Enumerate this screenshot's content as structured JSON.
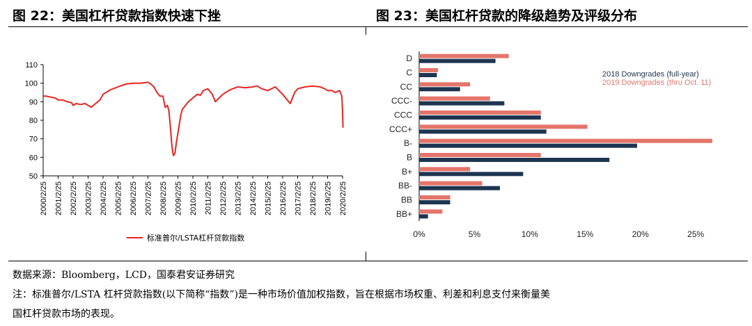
{
  "left_title": "图 22：美国杠杆贷款指数快速下挫",
  "right_title": "图 23：美国杠杆贷款的降级趋势及评级分布",
  "source": "数据来源：Bloomberg，LCD，国泰君安证券研究",
  "note_line1": "注：标准普尔/LSTA 杠杆贷款指数(以下简称“指数”)是一种市场价值加权指数，旨在根据市场权重、利差和利息支付来衡量美",
  "note_line2": "国杠杆贷款市场的表现。",
  "chart_data": [
    {
      "type": "line",
      "title": "",
      "xlabel": "",
      "ylabel": "",
      "ylim": [
        50,
        110
      ],
      "yticks": [
        "110",
        "100",
        "90",
        "80",
        "70",
        "60",
        "50"
      ],
      "xticks": [
        "2000/2/25",
        "2001/2/25",
        "2002/2/25",
        "2003/2/25",
        "2004/2/25",
        "2005/2/25",
        "2006/2/25",
        "2007/2/25",
        "2008/2/25",
        "2009/2/25",
        "2010/2/25",
        "2011/2/25",
        "2012/2/25",
        "2013/2/25",
        "2014/2/25",
        "2015/2/25",
        "2016/2/25",
        "2017/2/25",
        "2018/2/25",
        "2019/2/25",
        "2020/2/25"
      ],
      "grid": false,
      "legend_position": "bottom",
      "series": [
        {
          "name": "标准普尔/LSTA杠杆贷款指数",
          "color": "#e8231e",
          "x": [
            0,
            0.2,
            0.5,
            0.8,
            1.0,
            1.3,
            1.6,
            1.9,
            2.0,
            2.2,
            2.5,
            2.8,
            3.0,
            3.2,
            3.5,
            3.8,
            4.0,
            4.5,
            5.0,
            5.5,
            6.0,
            6.5,
            7.0,
            7.2,
            7.4,
            7.6,
            7.8,
            8.0,
            8.15,
            8.3,
            8.4,
            8.5,
            8.6,
            8.7,
            8.8,
            8.9,
            9.0,
            9.1,
            9.2,
            9.3,
            9.5,
            9.7,
            10.0,
            10.3,
            10.5,
            10.7,
            11.0,
            11.3,
            11.5,
            12.0,
            12.5,
            13.0,
            13.5,
            14.0,
            14.3,
            14.6,
            15.0,
            15.5,
            16.0,
            16.5,
            16.8,
            17.0,
            17.5,
            18.0,
            18.5,
            18.8,
            19.0,
            19.3,
            19.5,
            19.8,
            19.95,
            20.0,
            20.03
          ],
          "y": [
            93,
            93,
            92.5,
            92,
            91,
            91,
            90,
            89.5,
            88,
            89,
            88.5,
            89,
            88,
            87,
            89,
            91,
            94,
            96.5,
            98,
            99.5,
            100,
            100,
            100.5,
            99.5,
            98,
            95,
            93,
            93,
            87,
            88,
            85,
            76,
            66,
            61,
            62,
            68,
            73,
            78,
            83,
            86,
            88,
            90,
            92,
            94,
            93.5,
            96,
            97,
            94,
            90,
            94,
            96.5,
            98,
            97.5,
            98,
            98.5,
            97,
            96,
            98,
            94,
            89,
            95,
            97,
            98,
            98.5,
            98,
            97,
            96,
            96,
            95,
            96,
            93,
            85,
            76
          ]
        }
      ]
    },
    {
      "type": "bar",
      "orientation": "horizontal",
      "categories": [
        "D",
        "C",
        "CC",
        "CCC-",
        "CCC",
        "CCC+",
        "B-",
        "B",
        "B+",
        "BB-",
        "BB",
        "BB+"
      ],
      "xlim": [
        0,
        26.5
      ],
      "xticks": [
        "0%",
        "5%",
        "10%",
        "15%",
        "20%",
        "25%"
      ],
      "grid": false,
      "legend_position": "top-right",
      "series": [
        {
          "name": "2019 Downgrades (thru Oct. 11)",
          "color": "#e4756a",
          "values": [
            8.1,
            1.7,
            4.6,
            6.4,
            11.0,
            15.2,
            26.5,
            11.0,
            4.6,
            5.7,
            2.8,
            2.1
          ]
        },
        {
          "name": "2018 Downgrades (full-year)",
          "color": "#1d3550",
          "values": [
            6.9,
            1.6,
            3.7,
            7.7,
            11.0,
            11.5,
            19.7,
            17.2,
            9.4,
            7.3,
            2.8,
            0.8
          ]
        }
      ]
    }
  ]
}
